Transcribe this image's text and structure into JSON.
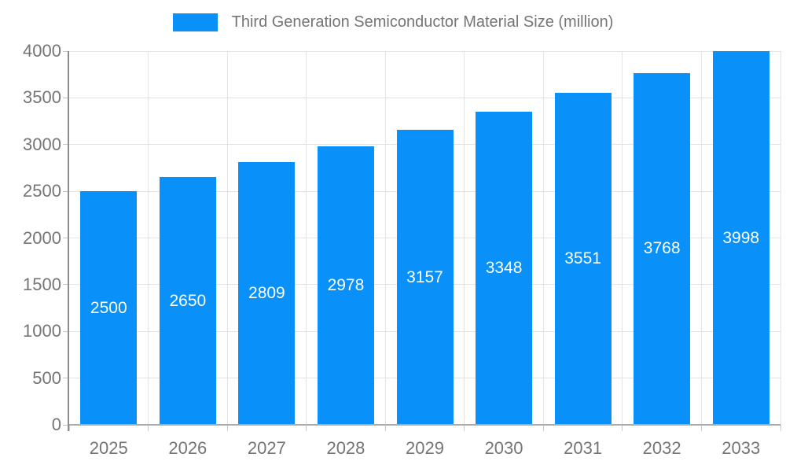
{
  "chart_data": {
    "type": "bar",
    "title": "Third Generation Semiconductor Material Size (million)",
    "categories": [
      "2025",
      "2026",
      "2027",
      "2028",
      "2029",
      "2030",
      "2031",
      "2032",
      "2033"
    ],
    "values": [
      2500,
      2650,
      2809,
      2978,
      3157,
      3348,
      3551,
      3768,
      3998
    ],
    "xlabel": "",
    "ylabel": "",
    "ylim": [
      0,
      4000
    ],
    "yticks": [
      0,
      500,
      1000,
      1500,
      2000,
      2500,
      3000,
      3500,
      4000
    ],
    "grid": true,
    "legend_position": "top",
    "bar_labels_inside": true,
    "colors": {
      "bar": "#0990f9",
      "bar_label": "#ffffff",
      "axis_text": "#757575",
      "title_text": "#757575",
      "grid_line": "#e3e3e3",
      "y_axis_line": "#8c8c8c",
      "x_axis_line": "#ababab",
      "background": "#ffffff"
    }
  }
}
